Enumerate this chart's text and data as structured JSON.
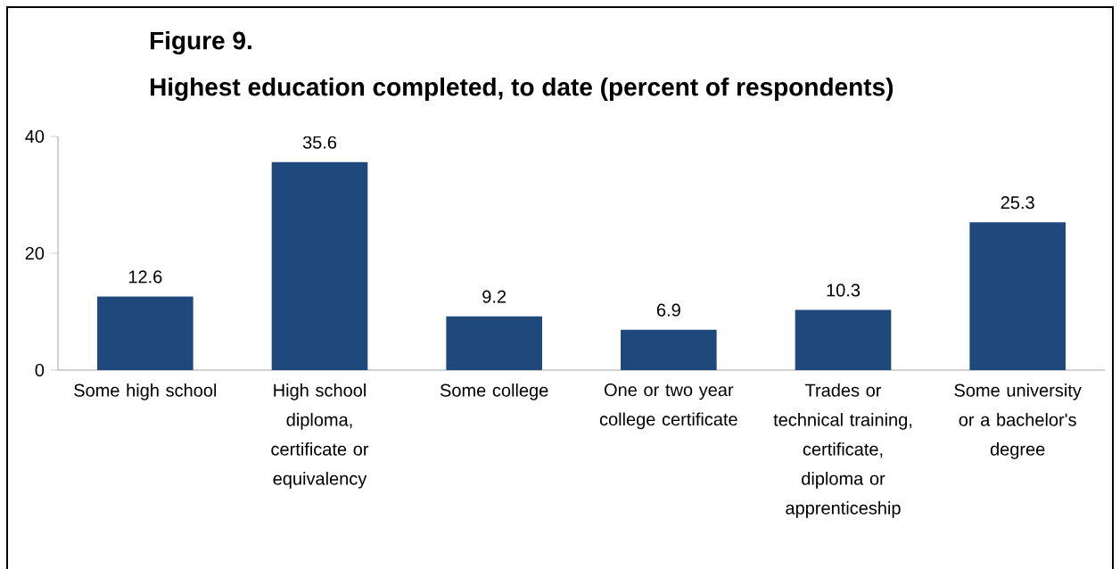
{
  "chart_data": {
    "type": "bar",
    "title": "Figure 9.",
    "subtitle": "Highest education completed, to date (percent of respondents)",
    "categories": [
      "Some high school",
      "High school diploma, certificate or equivalency",
      "Some college",
      "One or two year college certificate",
      "Trades or technical training, certificate, diploma or apprenticeship",
      "Some university or a bachelor's degree"
    ],
    "values": [
      12.6,
      35.6,
      9.2,
      6.9,
      10.3,
      25.3
    ],
    "color": "#1f497d",
    "ylim": [
      0,
      40
    ],
    "yticks": [
      0,
      20,
      40
    ],
    "grid": false,
    "data_labels": true
  }
}
